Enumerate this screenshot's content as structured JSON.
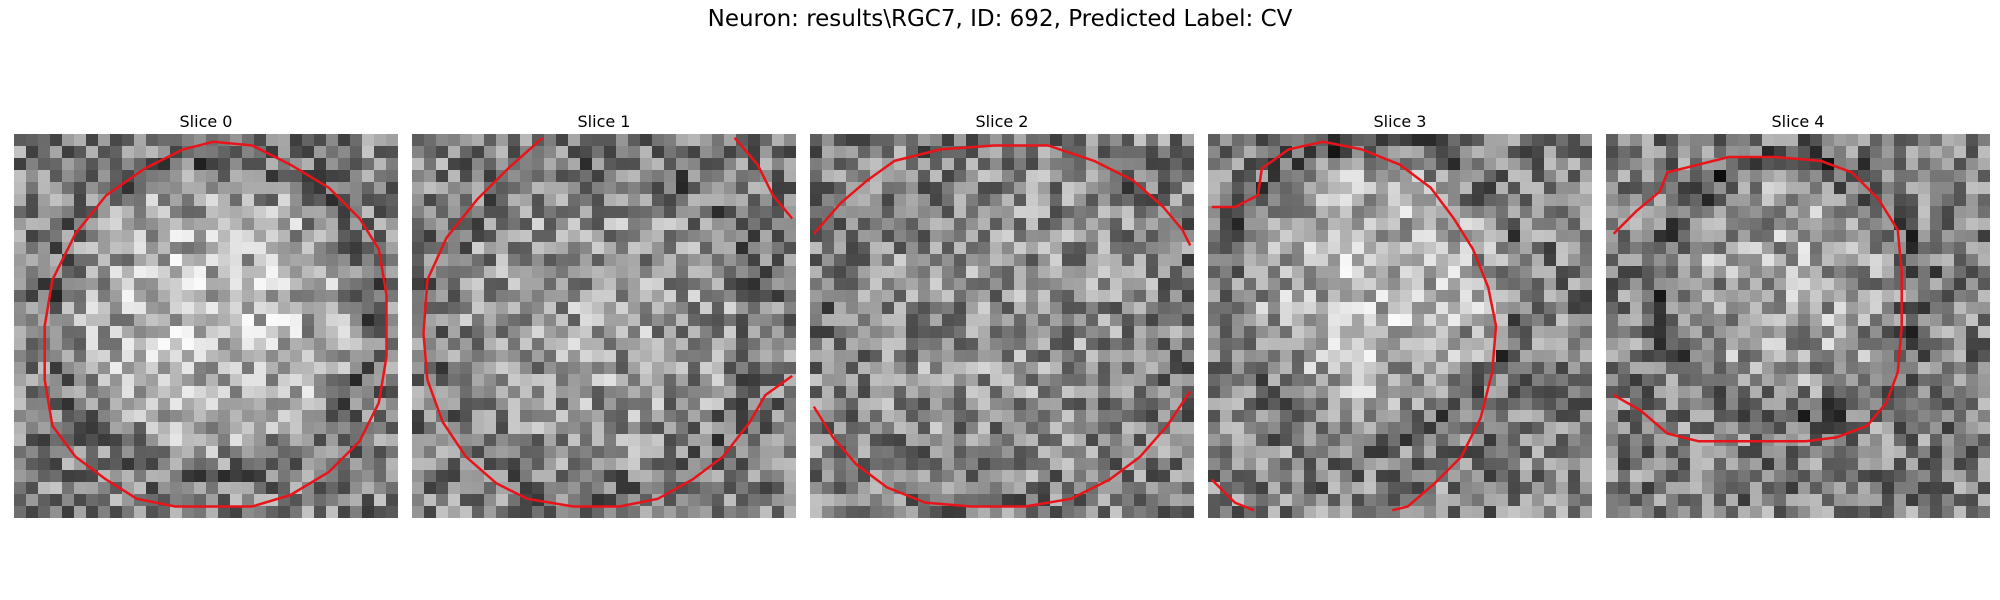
{
  "figure": {
    "title": "Neuron: results\\RGC7, ID: 692, Predicted Label: CV"
  },
  "panels": [
    {
      "title": "Slice 0",
      "seed": 11,
      "center": [
        0.52,
        0.48
      ],
      "radius": 0.4,
      "contrast": 0.28,
      "ring": 0.12,
      "contours": [
        [
          [
            0.52,
            0.02
          ],
          [
            0.62,
            0.03
          ],
          [
            0.72,
            0.08
          ],
          [
            0.82,
            0.14
          ],
          [
            0.9,
            0.22
          ],
          [
            0.95,
            0.3
          ],
          [
            0.97,
            0.42
          ],
          [
            0.97,
            0.58
          ],
          [
            0.95,
            0.7
          ],
          [
            0.9,
            0.8
          ],
          [
            0.82,
            0.88
          ],
          [
            0.72,
            0.94
          ],
          [
            0.62,
            0.97
          ],
          [
            0.52,
            0.97
          ],
          [
            0.42,
            0.97
          ],
          [
            0.32,
            0.95
          ],
          [
            0.24,
            0.9
          ],
          [
            0.16,
            0.84
          ],
          [
            0.1,
            0.76
          ],
          [
            0.08,
            0.64
          ],
          [
            0.08,
            0.5
          ],
          [
            0.1,
            0.38
          ],
          [
            0.16,
            0.26
          ],
          [
            0.24,
            0.16
          ],
          [
            0.34,
            0.09
          ],
          [
            0.44,
            0.04
          ],
          [
            0.52,
            0.02
          ]
        ]
      ]
    },
    {
      "title": "Slice 1",
      "seed": 23,
      "center": [
        0.48,
        0.5
      ],
      "radius": 0.42,
      "contrast": 0.14,
      "ring": 0.1,
      "contours": [
        [
          [
            0.34,
            0.01
          ],
          [
            0.25,
            0.09
          ],
          [
            0.17,
            0.17
          ],
          [
            0.09,
            0.27
          ],
          [
            0.04,
            0.38
          ],
          [
            0.03,
            0.52
          ],
          [
            0.04,
            0.64
          ],
          [
            0.08,
            0.75
          ],
          [
            0.14,
            0.84
          ],
          [
            0.22,
            0.91
          ],
          [
            0.3,
            0.95
          ],
          [
            0.42,
            0.97
          ],
          [
            0.54,
            0.97
          ],
          [
            0.64,
            0.95
          ],
          [
            0.73,
            0.9
          ],
          [
            0.81,
            0.84
          ],
          [
            0.88,
            0.75
          ],
          [
            0.92,
            0.68
          ],
          [
            0.99,
            0.63
          ]
        ],
        [
          [
            0.84,
            0.01
          ],
          [
            0.9,
            0.08
          ],
          [
            0.94,
            0.16
          ],
          [
            0.99,
            0.22
          ]
        ]
      ]
    },
    {
      "title": "Slice 2",
      "seed": 37,
      "center": [
        0.52,
        0.48
      ],
      "radius": 0.45,
      "contrast": 0.08,
      "ring": 0.05,
      "contours": [
        [
          [
            0.01,
            0.26
          ],
          [
            0.08,
            0.18
          ],
          [
            0.15,
            0.12
          ],
          [
            0.22,
            0.07
          ],
          [
            0.34,
            0.04
          ],
          [
            0.48,
            0.03
          ],
          [
            0.62,
            0.03
          ],
          [
            0.74,
            0.07
          ],
          [
            0.84,
            0.12
          ],
          [
            0.92,
            0.19
          ],
          [
            0.97,
            0.25
          ],
          [
            0.99,
            0.29
          ]
        ],
        [
          [
            0.01,
            0.71
          ],
          [
            0.06,
            0.79
          ],
          [
            0.12,
            0.86
          ],
          [
            0.2,
            0.92
          ],
          [
            0.3,
            0.96
          ],
          [
            0.42,
            0.97
          ],
          [
            0.56,
            0.97
          ],
          [
            0.68,
            0.95
          ],
          [
            0.78,
            0.9
          ],
          [
            0.86,
            0.84
          ],
          [
            0.93,
            0.76
          ],
          [
            0.99,
            0.67
          ]
        ]
      ]
    },
    {
      "title": "Slice 3",
      "seed": 49,
      "center": [
        0.44,
        0.4
      ],
      "radius": 0.37,
      "contrast": 0.26,
      "ring": 0.15,
      "contours": [
        [
          [
            0.01,
            0.19
          ],
          [
            0.07,
            0.19
          ],
          [
            0.13,
            0.16
          ],
          [
            0.14,
            0.09
          ],
          [
            0.21,
            0.04
          ],
          [
            0.3,
            0.02
          ],
          [
            0.4,
            0.04
          ],
          [
            0.5,
            0.08
          ],
          [
            0.58,
            0.14
          ],
          [
            0.64,
            0.22
          ],
          [
            0.69,
            0.3
          ],
          [
            0.73,
            0.4
          ],
          [
            0.75,
            0.5
          ],
          [
            0.74,
            0.62
          ],
          [
            0.71,
            0.74
          ],
          [
            0.66,
            0.84
          ],
          [
            0.59,
            0.91
          ],
          [
            0.52,
            0.97
          ],
          [
            0.48,
            0.98
          ]
        ],
        [
          [
            0.01,
            0.9
          ],
          [
            0.07,
            0.96
          ],
          [
            0.12,
            0.98
          ]
        ]
      ]
    },
    {
      "title": "Slice 4",
      "seed": 61,
      "center": [
        0.48,
        0.4
      ],
      "radius": 0.33,
      "contrast": 0.18,
      "ring": 0.22,
      "contours": [
        [
          [
            0.02,
            0.26
          ],
          [
            0.08,
            0.2
          ],
          [
            0.14,
            0.15
          ],
          [
            0.16,
            0.1
          ],
          [
            0.24,
            0.08
          ],
          [
            0.32,
            0.06
          ],
          [
            0.44,
            0.06
          ],
          [
            0.56,
            0.07
          ],
          [
            0.64,
            0.1
          ],
          [
            0.71,
            0.17
          ],
          [
            0.76,
            0.25
          ],
          [
            0.77,
            0.36
          ],
          [
            0.77,
            0.5
          ],
          [
            0.76,
            0.62
          ],
          [
            0.73,
            0.7
          ],
          [
            0.68,
            0.76
          ],
          [
            0.6,
            0.79
          ],
          [
            0.52,
            0.8
          ],
          [
            0.42,
            0.8
          ],
          [
            0.34,
            0.8
          ],
          [
            0.24,
            0.8
          ],
          [
            0.16,
            0.78
          ],
          [
            0.09,
            0.72
          ],
          [
            0.02,
            0.68
          ]
        ]
      ]
    }
  ],
  "colors": {
    "contour": "#e8141a"
  }
}
